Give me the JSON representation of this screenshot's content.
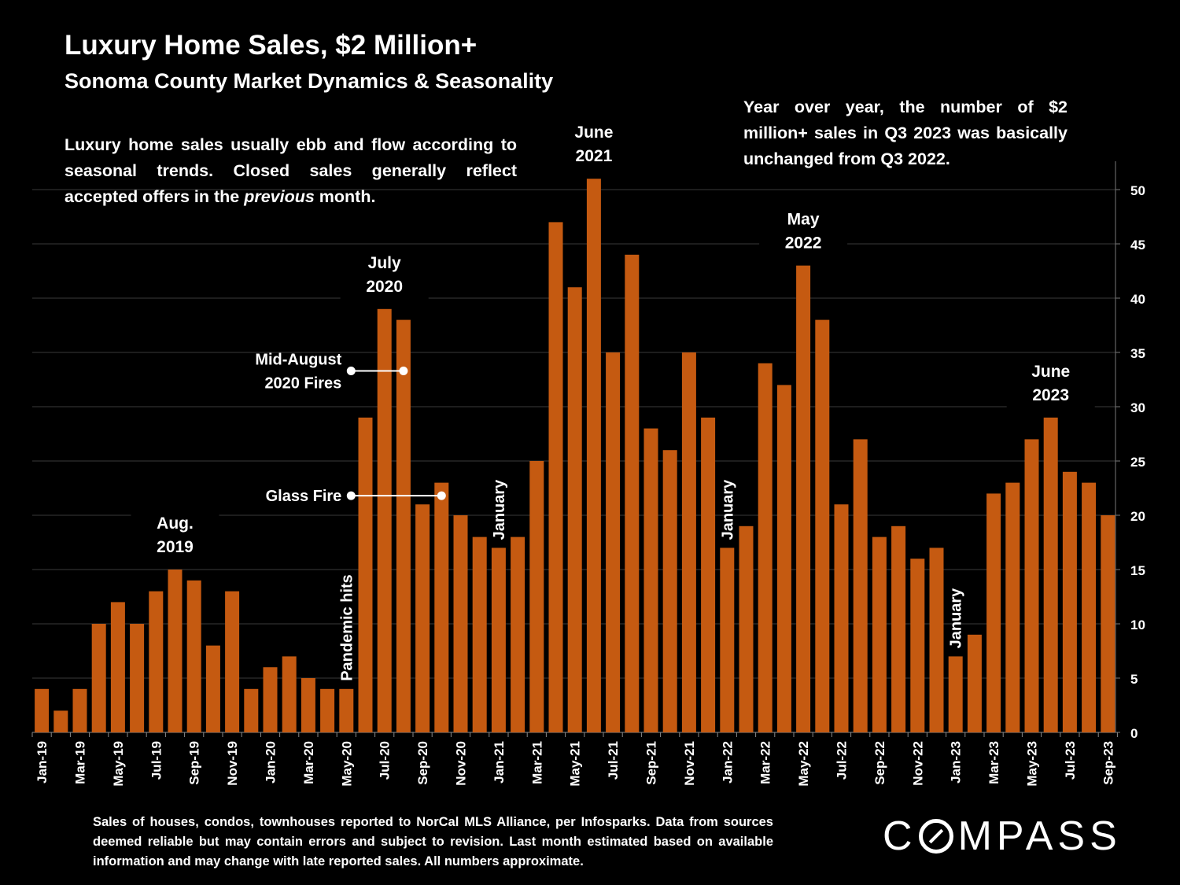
{
  "header": {
    "title": "Luxury Home Sales, $2 Million+",
    "subtitle": "Sonoma County Market Dynamics & Seasonality"
  },
  "notes": {
    "left_before": "Luxury home sales usually ebb and flow according to seasonal trends.  Closed sales generally reflect accepted offers in the ",
    "left_emphasis": "previous",
    "left_after": " month.",
    "right": "Year over year, the number of $2 million+ sales in Q3 2023 was basically unchanged from Q3 2022."
  },
  "footer": "Sales of houses, condos, townhouses reported to NorCal MLS Alliance, per Infosparks. Data from sources deemed reliable but may contain errors and subject to revision. Last month estimated based on available information and may change with late reported sales. All numbers approximate.",
  "logo": {
    "before": "C",
    "after": "MPASS",
    "icon": "compass-o-logo-icon"
  },
  "colors": {
    "bar": "#C55A11",
    "background": "#000000",
    "text": "#FFFFFF",
    "grid": "#3A3A3A"
  },
  "chart_data": {
    "type": "bar",
    "categories": [
      "Jan-19",
      "Feb-19",
      "Mar-19",
      "Apr-19",
      "May-19",
      "Jun-19",
      "Jul-19",
      "Aug-19",
      "Sep-19",
      "Oct-19",
      "Nov-19",
      "Dec-19",
      "Jan-20",
      "Feb-20",
      "Mar-20",
      "Apr-20",
      "May-20",
      "Jun-20",
      "Jul-20",
      "Aug-20",
      "Sep-20",
      "Oct-20",
      "Nov-20",
      "Dec-20",
      "Jan-21",
      "Feb-21",
      "Mar-21",
      "Apr-21",
      "May-21",
      "Jun-21",
      "Jul-21",
      "Aug-21",
      "Sep-21",
      "Oct-21",
      "Nov-21",
      "Dec-21",
      "Jan-22",
      "Feb-22",
      "Mar-22",
      "Apr-22",
      "May-22",
      "Jun-22",
      "Jul-22",
      "Aug-22",
      "Sep-22",
      "Oct-22",
      "Nov-22",
      "Dec-22",
      "Jan-23",
      "Feb-23",
      "Mar-23",
      "Apr-23",
      "May-23",
      "Jun-23",
      "Jul-23",
      "Aug-23",
      "Sep-23"
    ],
    "values": [
      4,
      2,
      4,
      10,
      12,
      10,
      13,
      15,
      14,
      8,
      13,
      4,
      6,
      7,
      5,
      4,
      4,
      29,
      39,
      38,
      21,
      23,
      20,
      18,
      17,
      18,
      25,
      47,
      41,
      51,
      35,
      44,
      28,
      26,
      35,
      29,
      17,
      19,
      34,
      32,
      43,
      38,
      21,
      27,
      18,
      19,
      16,
      17,
      7,
      9,
      22,
      23,
      27,
      29,
      24,
      23,
      20
    ],
    "tick_labels": [
      "Jan-19",
      "Mar-19",
      "May-19",
      "Jul-19",
      "Sep-19",
      "Nov-19",
      "Jan-20",
      "Mar-20",
      "May-20",
      "Jul-20",
      "Sep-20",
      "Nov-20",
      "Jan-21",
      "Mar-21",
      "May-21",
      "Jul-21",
      "Sep-21",
      "Nov-21",
      "Jan-22",
      "Mar-22",
      "May-22",
      "Jul-22",
      "Sep-22",
      "Nov-22",
      "Jan-23",
      "Mar-23",
      "May-23",
      "Jul-23",
      "Sep-23"
    ],
    "y_ticks": [
      0,
      5,
      10,
      15,
      20,
      25,
      30,
      35,
      40,
      45,
      50
    ],
    "ylim": [
      0,
      50
    ],
    "yaxis_side": "right",
    "grid": true,
    "xlabel": "",
    "ylabel": "",
    "annotations": [
      {
        "text": [
          "Aug.",
          "2019"
        ],
        "index": 7
      },
      {
        "text": [
          "July",
          "2020"
        ],
        "index": 18
      },
      {
        "text": [
          "June",
          "2021"
        ],
        "index": 29
      },
      {
        "text": [
          "May",
          "2022"
        ],
        "index": 40
      },
      {
        "text": [
          "June",
          "2023"
        ],
        "index": 53
      }
    ],
    "vertical_annotations": [
      {
        "text": "Pandemic hits",
        "index": 16
      },
      {
        "text": "January",
        "index": 24
      },
      {
        "text": "January",
        "index": 36
      },
      {
        "text": "January",
        "index": 48
      }
    ],
    "callouts": [
      {
        "text": [
          "Mid-August",
          "2020 Fires"
        ],
        "from_index": 16,
        "to_index": 19,
        "y": 33.3
      },
      {
        "text": [
          "Glass Fire"
        ],
        "from_index": 16,
        "to_index": 21,
        "y": 21.8
      }
    ]
  }
}
